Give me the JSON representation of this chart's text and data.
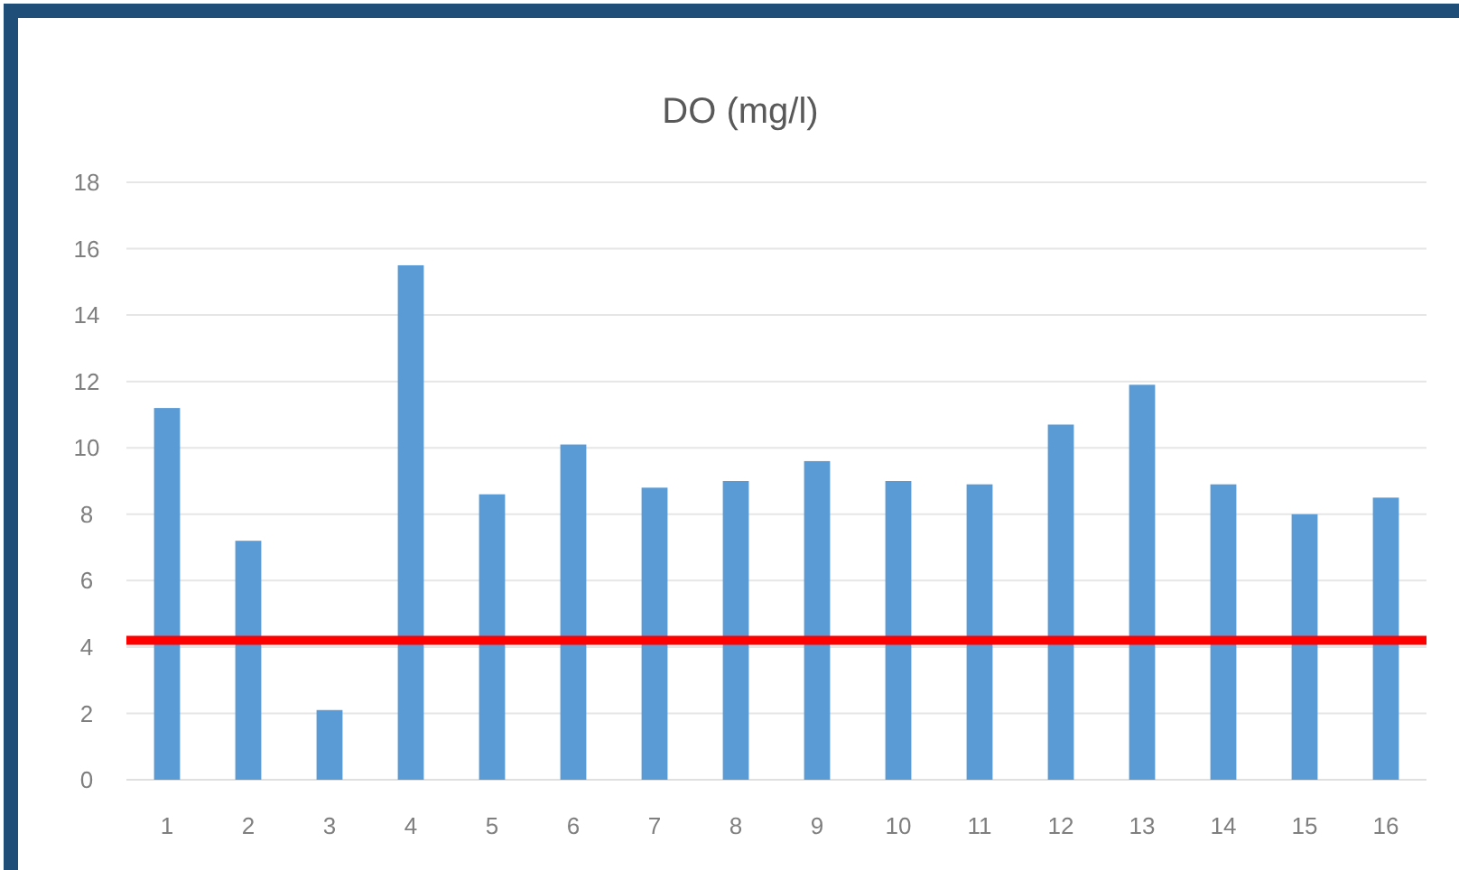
{
  "chart_data": {
    "type": "bar",
    "title": "DO (mg/l)",
    "categories": [
      "1",
      "2",
      "3",
      "4",
      "5",
      "6",
      "7",
      "8",
      "9",
      "10",
      "11",
      "12",
      "13",
      "14",
      "15",
      "16"
    ],
    "values": [
      11.2,
      7.2,
      2.1,
      15.5,
      8.6,
      10.1,
      8.8,
      9.0,
      9.6,
      9.0,
      8.9,
      10.7,
      11.9,
      8.9,
      8.0,
      8.5
    ],
    "color": "#5b9bd5",
    "ylim": [
      0,
      18
    ],
    "yticks": [
      0,
      2,
      4,
      6,
      8,
      10,
      12,
      14,
      16,
      18
    ],
    "grid": "y",
    "ref_lines": [
      {
        "axis": "y",
        "value": 4.2,
        "color": "#ff0000"
      }
    ]
  }
}
